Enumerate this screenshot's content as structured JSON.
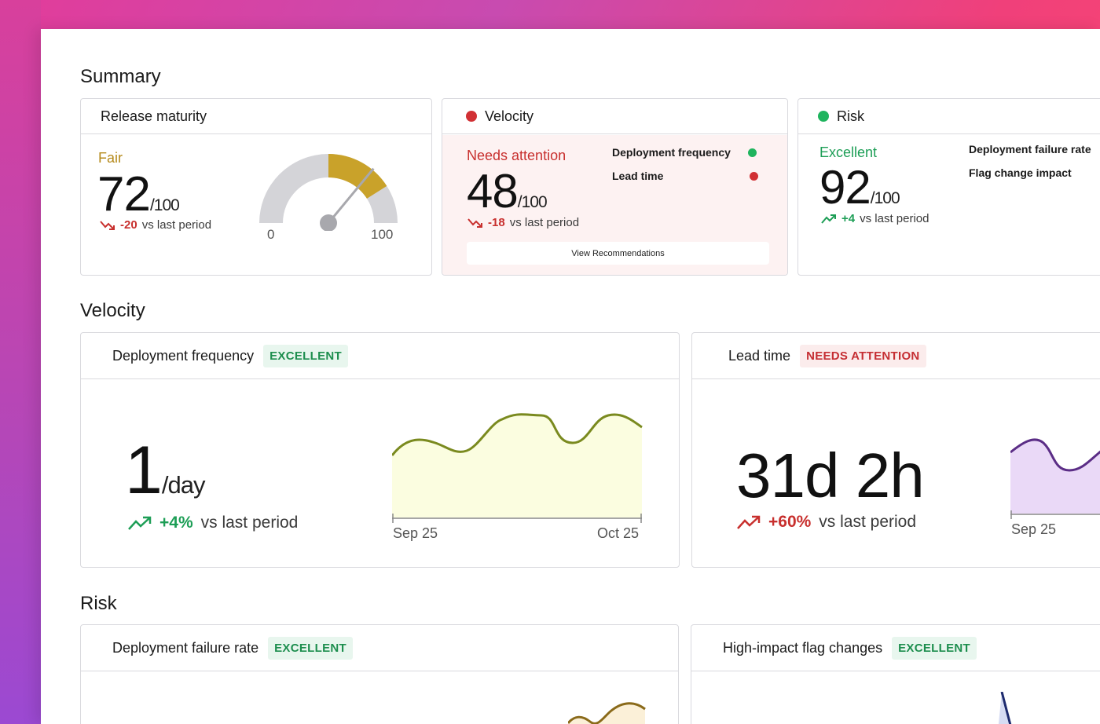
{
  "summary": {
    "title": "Summary",
    "release": {
      "title": "Release maturity",
      "status": "Fair",
      "score": "72",
      "of": "/100",
      "delta": "-20",
      "delta_suffix": "vs last period",
      "gauge_min": "0",
      "gauge_max": "100",
      "gauge_value": 72
    },
    "velocity": {
      "title": "Velocity",
      "status": "Needs attention",
      "score": "48",
      "of": "/100",
      "delta": "-18",
      "delta_suffix": "vs last period",
      "metrics": [
        "Deployment frequency",
        "Lead time"
      ],
      "button": "View Recommendations"
    },
    "risk": {
      "title": "Risk",
      "status": "Excellent",
      "score": "92",
      "of": "/100",
      "delta": "+4",
      "delta_suffix": "vs last period",
      "metrics": [
        "Deployment failure rate",
        "Flag change impact"
      ]
    }
  },
  "velocity_section": {
    "title": "Velocity",
    "deploy_freq": {
      "title": "Deployment frequency",
      "badge": "EXCELLENT",
      "value": "1",
      "unit": "/day",
      "delta": "+4%",
      "delta_suffix": "vs last period",
      "x_start": "Sep 25",
      "x_end": "Oct 25"
    },
    "lead_time": {
      "title": "Lead time",
      "badge": "NEEDS ATTENTION",
      "value": "31d 2h",
      "delta": "+60%",
      "delta_suffix": "vs last period",
      "x_start": "Sep 25"
    }
  },
  "risk_section": {
    "title": "Risk",
    "failure_rate": {
      "title": "Deployment failure rate",
      "badge": "EXCELLENT"
    },
    "flag_changes": {
      "title": "High-impact flag changes",
      "badge": "EXCELLENT"
    }
  },
  "colors": {
    "good": "#1d9e56",
    "bad": "#c8302e",
    "fair": "#b58a1b",
    "deploy_chart_fill": "#fbfde0",
    "deploy_chart_line": "#7a8a1f",
    "lead_chart_fill": "#ead9f7",
    "lead_chart_line": "#5b2d86"
  }
}
